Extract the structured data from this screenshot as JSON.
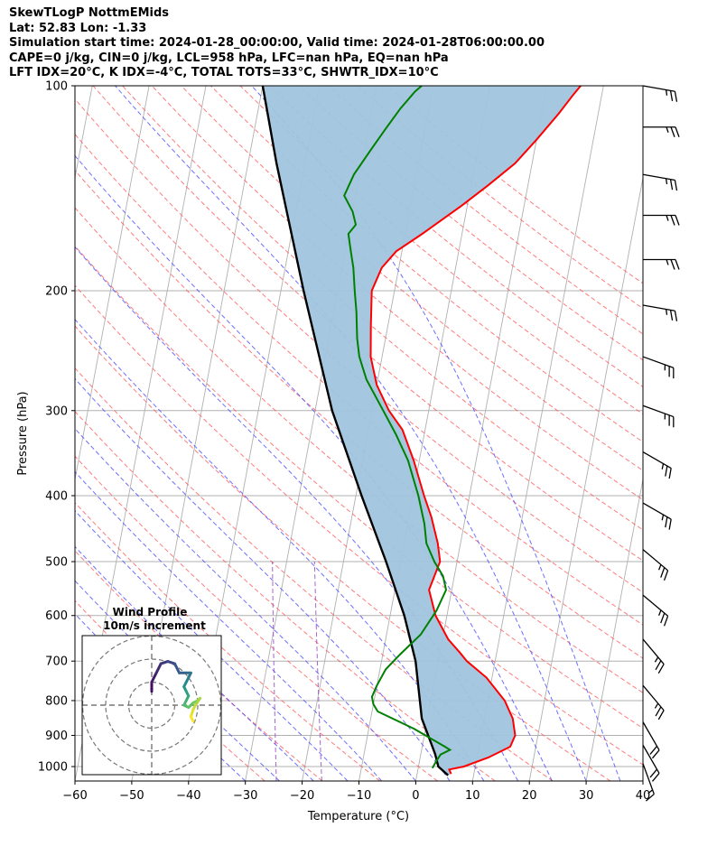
{
  "header": {
    "line1": "SkewTLogP NottmEMids",
    "line2": "Lat: 52.83   Lon: -1.33",
    "line3": "Simulation start time: 2024-01-28_00:00:00, Valid time: 2024-01-28T06:00:00.00",
    "line4": "CAPE=0 j/kg, CIN=0 j/kg, LCL=958 hPa, LFC=nan hPa, EQ=nan hPa",
    "line5": "LFT IDX=20°C, K IDX=-4°C, TOTAL TOTS=33°C, SHWTR_IDX=10°C"
  },
  "chart_data": {
    "type": "line",
    "subtype": "skew-t log-p",
    "xlabel": "Temperature (°C)",
    "ylabel": "Pressure (hPa)",
    "xlim": [
      -60,
      40
    ],
    "ylim": [
      1050,
      100
    ],
    "y_scale": "log",
    "x_ticks": [
      "−60",
      "−50",
      "−40",
      "−30",
      "−20",
      "−10",
      "0",
      "10",
      "20",
      "30",
      "40"
    ],
    "y_ticks": [
      "100",
      "200",
      "300",
      "400",
      "500",
      "600",
      "700",
      "800",
      "900",
      "1000"
    ],
    "grid": true,
    "colors": {
      "temperature": "#ff0000",
      "dewpoint": "#008000",
      "parcel": "#000000",
      "fill": "#a0c4de",
      "dry_adiabat": "#ff5050",
      "moist_adiabat": "#4a4aff",
      "mixing_ratio": "#9040c0"
    },
    "series": [
      {
        "id": "temperature",
        "points": [
          [
            6,
            1025
          ],
          [
            5.5,
            1010
          ],
          [
            8,
            1000
          ],
          [
            12,
            970
          ],
          [
            15.5,
            935
          ],
          [
            16,
            900
          ],
          [
            15,
            850
          ],
          [
            13,
            800
          ],
          [
            9,
            740
          ],
          [
            5,
            700
          ],
          [
            3.5,
            680
          ],
          [
            1,
            650
          ],
          [
            -2,
            600
          ],
          [
            -4,
            550
          ],
          [
            -3,
            500
          ],
          [
            -4,
            470
          ],
          [
            -6,
            430
          ],
          [
            -8,
            400
          ],
          [
            -11,
            355
          ],
          [
            -14,
            320
          ],
          [
            -17,
            300
          ],
          [
            -20,
            275
          ],
          [
            -22,
            250
          ],
          [
            -23,
            225
          ],
          [
            -24,
            200
          ],
          [
            -23,
            185
          ],
          [
            -21,
            175
          ],
          [
            -17,
            165
          ],
          [
            -11,
            150
          ],
          [
            -7,
            140
          ],
          [
            -3,
            130
          ],
          [
            0,
            120
          ],
          [
            3,
            110
          ],
          [
            5,
            103
          ],
          [
            6,
            100
          ]
        ]
      },
      {
        "id": "dewpoint",
        "points": [
          [
            2.5,
            1005
          ],
          [
            3,
            980
          ],
          [
            3.5,
            960
          ],
          [
            5,
            945
          ],
          [
            4,
            935
          ],
          [
            -2,
            880
          ],
          [
            -9,
            830
          ],
          [
            -10,
            810
          ],
          [
            -10.5,
            790
          ],
          [
            -10,
            760
          ],
          [
            -9,
            720
          ],
          [
            -7,
            685
          ],
          [
            -4,
            640
          ],
          [
            -2,
            590
          ],
          [
            -1,
            550
          ],
          [
            -2,
            525
          ],
          [
            -4,
            500
          ],
          [
            -6,
            470
          ],
          [
            -7,
            440
          ],
          [
            -9,
            400
          ],
          [
            -12,
            355
          ],
          [
            -15,
            325
          ],
          [
            -18,
            300
          ],
          [
            -22,
            270
          ],
          [
            -24,
            250
          ],
          [
            -25,
            235
          ],
          [
            -26,
            215
          ],
          [
            -27,
            200
          ],
          [
            -28,
            185
          ],
          [
            -29,
            175
          ],
          [
            -30,
            165
          ],
          [
            -29,
            160
          ],
          [
            -30,
            153
          ],
          [
            -32,
            145
          ],
          [
            -31,
            135
          ],
          [
            -29,
            125
          ],
          [
            -27,
            116
          ],
          [
            -25,
            108
          ],
          [
            -23,
            102
          ],
          [
            -22,
            100
          ]
        ]
      },
      {
        "id": "parcel",
        "points": [
          [
            5.5,
            1030
          ],
          [
            3.5,
            1000
          ],
          [
            2.5,
            958
          ],
          [
            -1,
            850
          ],
          [
            -4,
            700
          ],
          [
            -7.5,
            600
          ],
          [
            -12.5,
            500
          ],
          [
            -19,
            400
          ],
          [
            -27,
            300
          ],
          [
            -36,
            200
          ],
          [
            -45,
            130
          ],
          [
            -50,
            100
          ]
        ]
      }
    ],
    "hodograph": {
      "title": "Wind Profile",
      "subtitle": "10m/s increment",
      "rings_ms": [
        10,
        20,
        30
      ],
      "points": [
        [
          0,
          6
        ],
        [
          0,
          10
        ],
        [
          2,
          14
        ],
        [
          4,
          18
        ],
        [
          7,
          19
        ],
        [
          10,
          18
        ],
        [
          12,
          14
        ],
        [
          15,
          14
        ],
        [
          17,
          14
        ],
        [
          16,
          12
        ],
        [
          15,
          10
        ],
        [
          14,
          8
        ],
        [
          15,
          6
        ],
        [
          16,
          4
        ],
        [
          15,
          2
        ],
        [
          14,
          0
        ],
        [
          16,
          -1
        ],
        [
          18,
          1
        ],
        [
          20,
          2
        ],
        [
          21,
          3
        ],
        [
          19,
          0
        ],
        [
          18,
          -2
        ],
        [
          17,
          -5
        ],
        [
          18,
          -7
        ]
      ]
    },
    "wind_barbs": [
      {
        "pressure": 100,
        "speed_kt": 25,
        "direction_deg": 280
      },
      {
        "pressure": 115,
        "speed_kt": 25,
        "direction_deg": 270
      },
      {
        "pressure": 135,
        "speed_kt": 25,
        "direction_deg": 280
      },
      {
        "pressure": 155,
        "speed_kt": 25,
        "direction_deg": 270
      },
      {
        "pressure": 180,
        "speed_kt": 25,
        "direction_deg": 270
      },
      {
        "pressure": 210,
        "speed_kt": 25,
        "direction_deg": 280
      },
      {
        "pressure": 250,
        "speed_kt": 25,
        "direction_deg": 290
      },
      {
        "pressure": 295,
        "speed_kt": 25,
        "direction_deg": 290
      },
      {
        "pressure": 345,
        "speed_kt": 25,
        "direction_deg": 300
      },
      {
        "pressure": 410,
        "speed_kt": 25,
        "direction_deg": 300
      },
      {
        "pressure": 480,
        "speed_kt": 25,
        "direction_deg": 310
      },
      {
        "pressure": 560,
        "speed_kt": 25,
        "direction_deg": 310
      },
      {
        "pressure": 650,
        "speed_kt": 25,
        "direction_deg": 320
      },
      {
        "pressure": 760,
        "speed_kt": 25,
        "direction_deg": 320
      },
      {
        "pressure": 860,
        "speed_kt": 20,
        "direction_deg": 330
      },
      {
        "pressure": 930,
        "speed_kt": 20,
        "direction_deg": 330
      },
      {
        "pressure": 990,
        "speed_kt": 15,
        "direction_deg": 340
      }
    ]
  }
}
